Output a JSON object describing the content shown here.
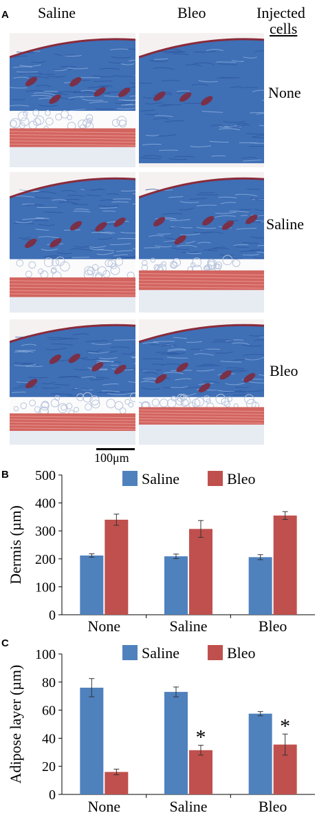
{
  "panel_a": {
    "letter": "A",
    "column_headers": [
      "Saline",
      "Bleo"
    ],
    "injected_header": [
      "Injected",
      "cells"
    ],
    "row_labels": [
      "None",
      "Saline",
      "Bleo"
    ],
    "scale_bar": "100μm"
  },
  "colors": {
    "saline": "#4f81bd",
    "bleo": "#c0504d"
  },
  "chart_data": [
    {
      "panel": "B",
      "type": "bar",
      "categories": [
        "None",
        "Saline",
        "Bleo"
      ],
      "ylabel": "Dermis (µm)",
      "ylim": [
        0,
        500
      ],
      "yticks": [
        "0",
        "100",
        "200",
        "300",
        "400",
        "500"
      ],
      "legend": "top-center",
      "grid": false,
      "series": [
        {
          "name": "Saline",
          "color": "#4f81bd",
          "values": [
            212,
            209,
            206
          ],
          "errors": [
            6,
            8,
            9
          ]
        },
        {
          "name": "Bleo",
          "color": "#c0504d",
          "values": [
            340,
            307,
            355
          ],
          "errors": [
            20,
            30,
            14
          ]
        }
      ],
      "annotations": []
    },
    {
      "panel": "C",
      "type": "bar",
      "categories": [
        "None",
        "Saline",
        "Bleo"
      ],
      "ylabel": "Adipose layer (µm)",
      "ylim": [
        0,
        100
      ],
      "yticks": [
        "0",
        "20",
        "40",
        "60",
        "80",
        "100"
      ],
      "legend": "top-center",
      "grid": false,
      "series": [
        {
          "name": "Saline",
          "color": "#4f81bd",
          "values": [
            76,
            73,
            57.5
          ],
          "errors": [
            6.5,
            3.5,
            1.5
          ]
        },
        {
          "name": "Bleo",
          "color": "#c0504d",
          "values": [
            16,
            31.5,
            35.5
          ],
          "errors": [
            2,
            3.5,
            7.5
          ]
        }
      ],
      "annotations": [
        {
          "text": "*",
          "category": "Saline",
          "series": "Bleo"
        },
        {
          "text": "*",
          "category": "Bleo",
          "series": "Bleo"
        }
      ]
    }
  ]
}
